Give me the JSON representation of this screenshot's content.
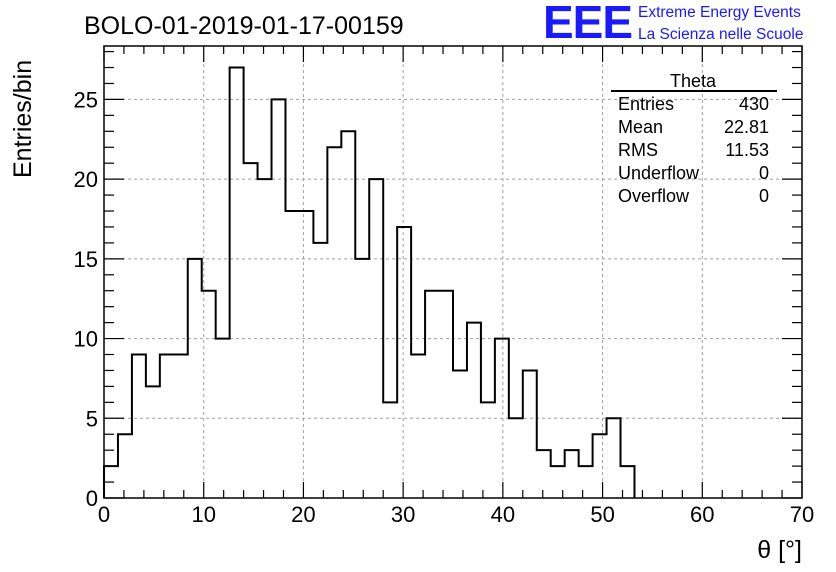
{
  "chart_data": {
    "type": "histogram",
    "title": "BOLO-01-2019-01-17-00159",
    "xlabel": "θ [°]",
    "ylabel": "Entries/bin",
    "xlim": [
      0,
      70
    ],
    "ylim": [
      0,
      28.35
    ],
    "xticks": [
      0,
      10,
      20,
      30,
      40,
      50,
      60,
      70
    ],
    "yticks": [
      0,
      5,
      10,
      15,
      20,
      25
    ],
    "grid": true,
    "bin_width": 1.4,
    "values": [
      2,
      4,
      9,
      7,
      9,
      9,
      15,
      13,
      10,
      27,
      21,
      20,
      25,
      18,
      18,
      16,
      22,
      23,
      15,
      20,
      6,
      17,
      9,
      13,
      13,
      8,
      11,
      6,
      10,
      5,
      8,
      3,
      2,
      3,
      2,
      4,
      5,
      2,
      0,
      0,
      0,
      0,
      0,
      0,
      0,
      0,
      0,
      0,
      0,
      0
    ],
    "stats_box": {
      "title": "Theta",
      "rows": [
        {
          "label": "Entries",
          "value": "430"
        },
        {
          "label": "Mean",
          "value": "22.81"
        },
        {
          "label": "RMS",
          "value": "11.53"
        },
        {
          "label": "Underflow",
          "value": "0"
        },
        {
          "label": "Overflow",
          "value": "0"
        }
      ]
    }
  },
  "logo": {
    "mark": "EEE",
    "line1": "Extreme Energy Events",
    "line2": "La Scienza nelle Scuole",
    "color": "#1a1aff"
  }
}
